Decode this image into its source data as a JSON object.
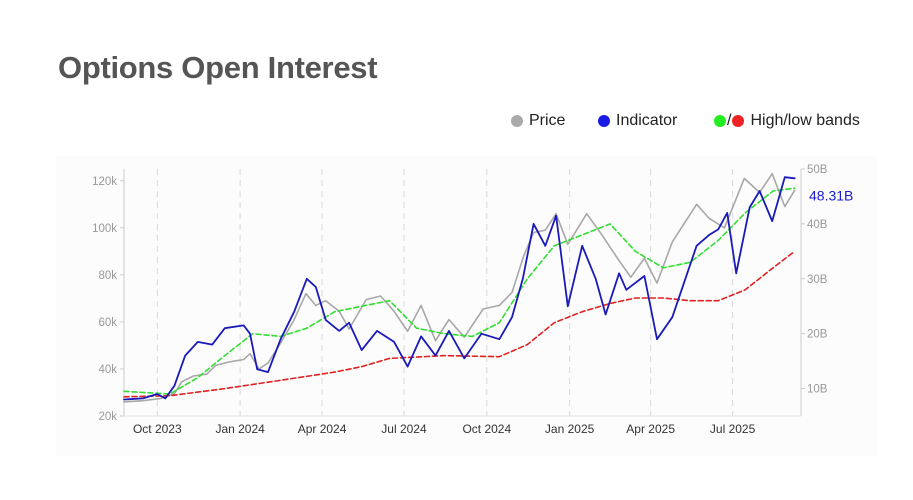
{
  "title": "Options Open Interest",
  "legend": {
    "price": "Price",
    "indicator": "Indicator",
    "slash": "/",
    "bands": "High/low bands"
  },
  "colors": {
    "price": "#a8a8a8",
    "indicator": "#1a1ab8",
    "high_band": "#33dd33",
    "low_band": "#dd2222",
    "legend_indicator_dot": "#1a1ae6",
    "legend_high_dot": "#22ee22",
    "legend_low_dot": "#ee2222"
  },
  "chart_data": {
    "type": "line",
    "x_range": [
      "2023-08-25",
      "2025-09-15"
    ],
    "y_left_range": [
      20000,
      125000
    ],
    "y_right_range_billions": [
      5,
      50
    ],
    "left_ticks": [
      {
        "value": 20000,
        "label": "20k"
      },
      {
        "value": 40000,
        "label": "40k"
      },
      {
        "value": 60000,
        "label": "60k"
      },
      {
        "value": 80000,
        "label": "80k"
      },
      {
        "value": 100000,
        "label": "100k"
      },
      {
        "value": 120000,
        "label": "120k"
      }
    ],
    "right_ticks": [
      {
        "value": 10,
        "label": "10B"
      },
      {
        "value": 20,
        "label": "20B"
      },
      {
        "value": 30,
        "label": "30B"
      },
      {
        "value": 40,
        "label": "40B"
      },
      {
        "value": 50,
        "label": "50B"
      }
    ],
    "x_ticks": [
      {
        "date": "2023-10-01",
        "label": "Oct 2023"
      },
      {
        "date": "2024-01-01",
        "label": "Jan 2024"
      },
      {
        "date": "2024-04-01",
        "label": "Apr 2024"
      },
      {
        "date": "2024-07-01",
        "label": "Jul 2024"
      },
      {
        "date": "2024-10-01",
        "label": "Oct 2024"
      },
      {
        "date": "2025-01-01",
        "label": "Jan 2025"
      },
      {
        "date": "2025-04-01",
        "label": "Apr 2025"
      },
      {
        "date": "2025-07-01",
        "label": "Jul 2025"
      }
    ],
    "grid": "vertical dashed",
    "last_value_label": "48.31B",
    "series": [
      {
        "name": "Price",
        "axis": "left",
        "points": [
          [
            "2023-08-25",
            26000
          ],
          [
            "2023-09-15",
            26500
          ],
          [
            "2023-10-05",
            27500
          ],
          [
            "2023-10-20",
            29500
          ],
          [
            "2023-10-28",
            34500
          ],
          [
            "2023-11-10",
            37000
          ],
          [
            "2023-11-25",
            37800
          ],
          [
            "2023-12-05",
            41500
          ],
          [
            "2023-12-20",
            43000
          ],
          [
            "2024-01-05",
            44000
          ],
          [
            "2024-01-12",
            46500
          ],
          [
            "2024-01-22",
            40000
          ],
          [
            "2024-02-01",
            42500
          ],
          [
            "2024-02-15",
            51000
          ],
          [
            "2024-03-01",
            61000
          ],
          [
            "2024-03-14",
            72000
          ],
          [
            "2024-03-25",
            67000
          ],
          [
            "2024-04-05",
            69000
          ],
          [
            "2024-04-20",
            64500
          ],
          [
            "2024-05-01",
            57000
          ],
          [
            "2024-05-20",
            69500
          ],
          [
            "2024-06-05",
            71000
          ],
          [
            "2024-06-20",
            64500
          ],
          [
            "2024-07-05",
            56000
          ],
          [
            "2024-07-20",
            67000
          ],
          [
            "2024-08-05",
            52000
          ],
          [
            "2024-08-20",
            61000
          ],
          [
            "2024-09-06",
            53500
          ],
          [
            "2024-09-27",
            65500
          ],
          [
            "2024-10-15",
            67000
          ],
          [
            "2024-10-29",
            72500
          ],
          [
            "2024-11-11",
            88000
          ],
          [
            "2024-11-22",
            98000
          ],
          [
            "2024-12-05",
            99000
          ],
          [
            "2024-12-17",
            106000
          ],
          [
            "2024-12-30",
            93000
          ],
          [
            "2025-01-20",
            106000
          ],
          [
            "2025-02-05",
            97500
          ],
          [
            "2025-02-25",
            86000
          ],
          [
            "2025-03-10",
            79000
          ],
          [
            "2025-03-25",
            87000
          ],
          [
            "2025-04-08",
            76500
          ],
          [
            "2025-04-25",
            94000
          ],
          [
            "2025-05-22",
            110000
          ],
          [
            "2025-06-05",
            104000
          ],
          [
            "2025-06-22",
            100000
          ],
          [
            "2025-07-14",
            121000
          ],
          [
            "2025-07-31",
            115000
          ],
          [
            "2025-08-14",
            123000
          ],
          [
            "2025-08-28",
            109000
          ],
          [
            "2025-09-08",
            116000
          ]
        ]
      },
      {
        "name": "Indicator",
        "axis": "right",
        "points": [
          [
            "2023-08-25",
            8.0
          ],
          [
            "2023-09-15",
            8.2
          ],
          [
            "2023-10-01",
            9.0
          ],
          [
            "2023-10-10",
            8.2
          ],
          [
            "2023-10-20",
            10.5
          ],
          [
            "2023-11-01",
            16.0
          ],
          [
            "2023-11-15",
            18.5
          ],
          [
            "2023-12-01",
            18.0
          ],
          [
            "2023-12-15",
            21.0
          ],
          [
            "2024-01-05",
            21.5
          ],
          [
            "2024-01-12",
            20.0
          ],
          [
            "2024-01-20",
            13.5
          ],
          [
            "2024-02-01",
            13.0
          ],
          [
            "2024-02-15",
            19.0
          ],
          [
            "2024-03-01",
            24.0
          ],
          [
            "2024-03-15",
            30.0
          ],
          [
            "2024-03-25",
            28.5
          ],
          [
            "2024-04-05",
            22.5
          ],
          [
            "2024-04-20",
            20.5
          ],
          [
            "2024-05-01",
            22.0
          ],
          [
            "2024-05-15",
            17.0
          ],
          [
            "2024-06-01",
            20.5
          ],
          [
            "2024-06-20",
            18.5
          ],
          [
            "2024-07-05",
            14.0
          ],
          [
            "2024-07-20",
            19.5
          ],
          [
            "2024-08-05",
            16.0
          ],
          [
            "2024-08-20",
            20.5
          ],
          [
            "2024-09-06",
            15.5
          ],
          [
            "2024-09-25",
            20.0
          ],
          [
            "2024-10-15",
            19.0
          ],
          [
            "2024-10-29",
            23.0
          ],
          [
            "2024-11-10",
            30.0
          ],
          [
            "2024-11-22",
            40.0
          ],
          [
            "2024-12-05",
            36.0
          ],
          [
            "2024-12-17",
            41.5
          ],
          [
            "2024-12-30",
            25.0
          ],
          [
            "2025-01-15",
            36.0
          ],
          [
            "2025-01-30",
            30.0
          ],
          [
            "2025-02-10",
            23.5
          ],
          [
            "2025-02-25",
            31.0
          ],
          [
            "2025-03-05",
            28.0
          ],
          [
            "2025-03-25",
            30.5
          ],
          [
            "2025-04-08",
            19.0
          ],
          [
            "2025-04-25",
            23.0
          ],
          [
            "2025-05-22",
            36.0
          ],
          [
            "2025-06-05",
            38.0
          ],
          [
            "2025-06-15",
            39.0
          ],
          [
            "2025-06-25",
            42.0
          ],
          [
            "2025-07-05",
            31.0
          ],
          [
            "2025-07-20",
            43.0
          ],
          [
            "2025-07-31",
            46.0
          ],
          [
            "2025-08-14",
            40.5
          ],
          [
            "2025-08-28",
            48.5
          ],
          [
            "2025-09-08",
            48.31
          ]
        ]
      },
      {
        "name": "High band",
        "axis": "right",
        "points": [
          [
            "2023-08-25",
            9.5
          ],
          [
            "2023-10-15",
            9.0
          ],
          [
            "2023-11-15",
            12.0
          ],
          [
            "2023-12-15",
            16.0
          ],
          [
            "2024-01-15",
            20.0
          ],
          [
            "2024-02-15",
            19.5
          ],
          [
            "2024-03-15",
            21.0
          ],
          [
            "2024-04-15",
            24.0
          ],
          [
            "2024-05-15",
            25.0
          ],
          [
            "2024-06-15",
            26.0
          ],
          [
            "2024-07-15",
            21.0
          ],
          [
            "2024-08-15",
            20.0
          ],
          [
            "2024-09-15",
            19.5
          ],
          [
            "2024-10-15",
            22.0
          ],
          [
            "2024-11-15",
            30.0
          ],
          [
            "2024-12-15",
            36.0
          ],
          [
            "2025-01-15",
            38.0
          ],
          [
            "2025-02-15",
            40.0
          ],
          [
            "2025-03-15",
            35.0
          ],
          [
            "2025-04-15",
            32.0
          ],
          [
            "2025-05-15",
            33.0
          ],
          [
            "2025-06-15",
            37.0
          ],
          [
            "2025-07-15",
            42.0
          ],
          [
            "2025-08-15",
            46.0
          ],
          [
            "2025-09-08",
            46.5
          ]
        ]
      },
      {
        "name": "Low band",
        "axis": "right",
        "points": [
          [
            "2023-08-25",
            8.5
          ],
          [
            "2023-10-15",
            8.7
          ],
          [
            "2023-12-15",
            10.0
          ],
          [
            "2024-02-15",
            11.5
          ],
          [
            "2024-04-15",
            13.0
          ],
          [
            "2024-05-15",
            14.0
          ],
          [
            "2024-06-15",
            15.5
          ],
          [
            "2024-08-15",
            16.0
          ],
          [
            "2024-10-15",
            15.8
          ],
          [
            "2024-11-15",
            18.0
          ],
          [
            "2024-12-15",
            22.0
          ],
          [
            "2025-01-15",
            24.0
          ],
          [
            "2025-02-15",
            25.5
          ],
          [
            "2025-03-15",
            26.5
          ],
          [
            "2025-04-15",
            26.5
          ],
          [
            "2025-05-15",
            26.0
          ],
          [
            "2025-06-15",
            26.0
          ],
          [
            "2025-07-15",
            28.0
          ],
          [
            "2025-08-15",
            32.0
          ],
          [
            "2025-09-08",
            35.0
          ]
        ]
      }
    ]
  }
}
